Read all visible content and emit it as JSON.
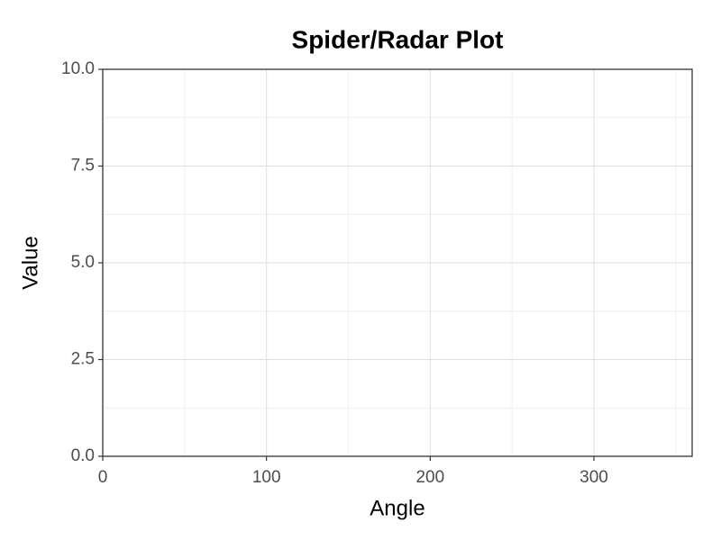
{
  "chart_data": {
    "type": "line",
    "title": "Spider/Radar Plot",
    "x_label": "Angle",
    "y_label": "Value",
    "series": [],
    "xlim": [
      0,
      360
    ],
    "xticks": [
      0,
      100,
      200,
      300
    ],
    "ylim": [
      0,
      10
    ],
    "yticks": [
      {
        "value": 0,
        "label": "0.0"
      },
      2.5,
      {
        "value": 5,
        "label": "5.0"
      },
      7.5,
      {
        "value": 10,
        "label": "10.0"
      }
    ],
    "grid": true,
    "minor_grid": true
  }
}
